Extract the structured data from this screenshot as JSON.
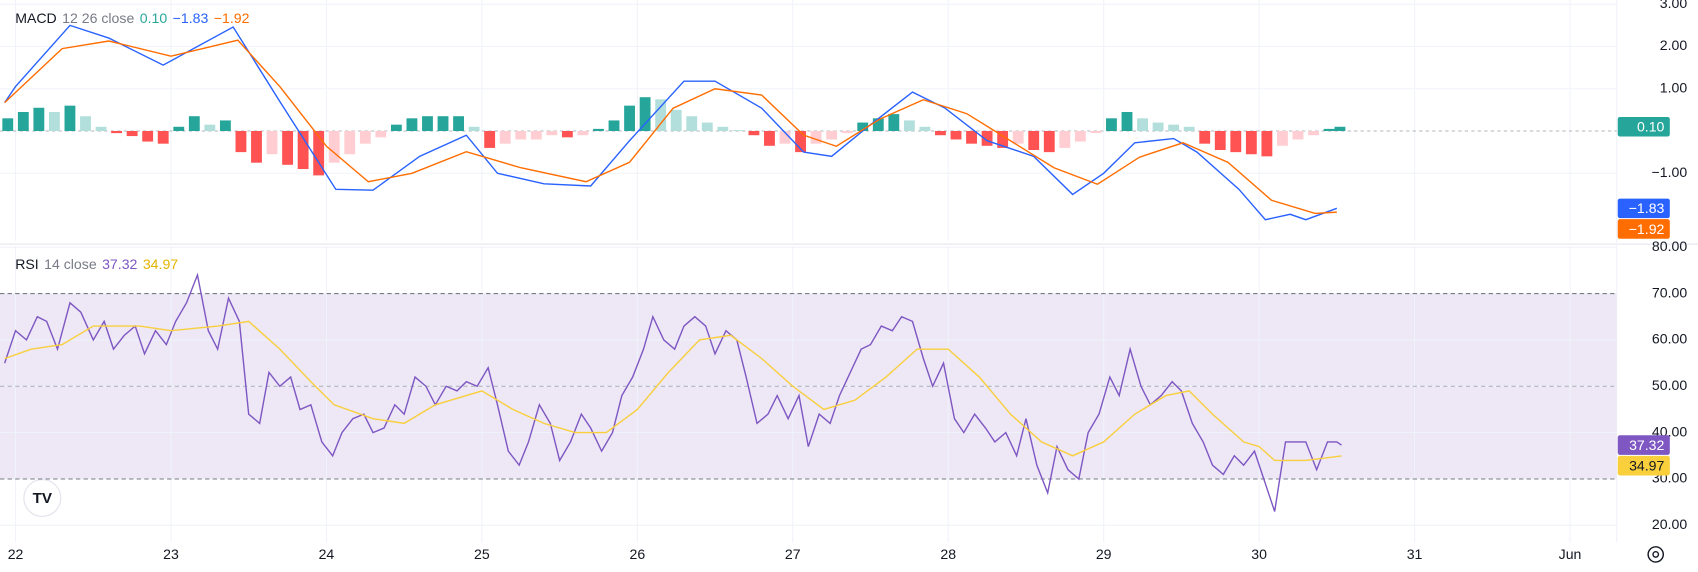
{
  "chart_data": [
    {
      "type": "macd",
      "title": "MACD",
      "params": "12 26 close",
      "xlim": [
        21.9,
        32.3
      ],
      "ylim": [
        -2.6,
        3.1
      ],
      "yticks": [
        {
          "value": 3,
          "label": "3.00"
        },
        {
          "value": 2,
          "label": "2.00"
        },
        {
          "value": 1,
          "label": "1.00"
        },
        {
          "value": -1,
          "label": "−1.00"
        }
      ],
      "zero_line": true,
      "grid": true,
      "series": [
        {
          "kind": "histogram",
          "color": "#26a69a",
          "last_label": "0.10",
          "colors": {
            "rise_above": "#26a69a",
            "fall_above": "#b2dfdb",
            "rise_below": "#ffcdd2",
            "fall_below": "#ff5252"
          },
          "x": [
            21.95,
            22.05,
            22.15,
            22.25,
            22.35,
            22.45,
            22.55,
            22.65,
            22.75,
            22.85,
            22.95,
            23.05,
            23.15,
            23.25,
            23.35,
            23.45,
            23.55,
            23.65,
            23.75,
            23.85,
            23.95,
            24.05,
            24.15,
            24.25,
            24.35,
            24.45,
            24.55,
            24.65,
            24.75,
            24.85,
            24.95,
            25.05,
            25.15,
            25.25,
            25.35,
            25.45,
            25.55,
            25.65,
            25.75,
            25.85,
            25.95,
            26.05,
            26.15,
            26.25,
            26.35,
            26.45,
            26.55,
            26.65,
            26.75,
            26.85,
            26.95,
            27.05,
            27.15,
            27.25,
            27.35,
            27.45,
            27.55,
            27.65,
            27.75,
            27.85,
            27.95,
            28.05,
            28.15,
            28.25,
            28.35,
            28.45,
            28.55,
            28.65,
            28.75,
            28.85,
            28.95,
            29.05,
            29.15,
            29.25,
            29.35,
            29.45,
            29.55,
            29.65,
            29.75,
            29.85,
            29.95,
            30.05,
            30.15,
            30.25,
            30.35,
            30.45,
            30.52
          ],
          "values": [
            0.3,
            0.45,
            0.55,
            0.45,
            0.6,
            0.35,
            0.1,
            -0.05,
            -0.12,
            -0.25,
            -0.3,
            0.1,
            0.35,
            0.15,
            0.25,
            -0.5,
            -0.75,
            -0.55,
            -0.8,
            -0.9,
            -1.05,
            -0.75,
            -0.55,
            -0.3,
            -0.15,
            0.15,
            0.3,
            0.35,
            0.35,
            0.35,
            0.1,
            -0.4,
            -0.3,
            -0.2,
            -0.2,
            -0.1,
            -0.15,
            -0.1,
            0.05,
            0.25,
            0.6,
            0.8,
            0.75,
            0.5,
            0.35,
            0.2,
            0.1,
            0.02,
            -0.1,
            -0.35,
            -0.3,
            -0.5,
            -0.3,
            -0.2,
            -0.05,
            0.2,
            0.3,
            0.4,
            0.25,
            0.1,
            -0.1,
            -0.2,
            -0.3,
            -0.35,
            -0.4,
            -0.3,
            -0.45,
            -0.5,
            -0.4,
            -0.25,
            -0.05,
            0.3,
            0.45,
            0.3,
            0.2,
            0.15,
            0.1,
            -0.3,
            -0.45,
            -0.5,
            -0.55,
            -0.6,
            -0.35,
            -0.2,
            -0.1,
            0.05,
            0.1
          ]
        },
        {
          "kind": "line",
          "color": "#2962ff",
          "last_label": "−1.83",
          "x": [
            21.93,
            22.0,
            22.35,
            22.6,
            22.95,
            23.4,
            23.7,
            24.06,
            24.3,
            24.6,
            24.9,
            25.1,
            25.4,
            25.7,
            25.95,
            26.3,
            26.5,
            26.8,
            27.07,
            27.25,
            27.5,
            27.77,
            27.98,
            28.25,
            28.55,
            28.8,
            29.0,
            29.2,
            29.45,
            29.6,
            29.87,
            30.04,
            30.2,
            30.3,
            30.5
          ],
          "values": [
            0.67,
            1.05,
            2.5,
            2.2,
            1.56,
            2.46,
            0.7,
            -1.38,
            -1.4,
            -0.6,
            -0.1,
            -1.0,
            -1.25,
            -1.3,
            -0.23,
            1.18,
            1.18,
            0.54,
            -0.5,
            -0.6,
            0.15,
            0.92,
            0.54,
            -0.23,
            -0.6,
            -1.5,
            -1.0,
            -0.28,
            -0.18,
            -0.5,
            -1.38,
            -2.1,
            -1.97,
            -2.1,
            -1.83
          ]
        },
        {
          "kind": "line",
          "color": "#ff6d00",
          "last_label": "−1.92",
          "x": [
            21.93,
            22.3,
            22.6,
            23.0,
            23.43,
            23.7,
            24.0,
            24.27,
            24.55,
            24.9,
            25.25,
            25.67,
            25.95,
            26.23,
            26.5,
            26.8,
            27.07,
            27.28,
            27.56,
            27.84,
            28.12,
            28.4,
            28.68,
            28.96,
            29.23,
            29.51,
            29.8,
            30.08,
            30.36,
            30.5
          ],
          "values": [
            0.67,
            1.95,
            2.13,
            1.77,
            2.15,
            1.05,
            -0.36,
            -1.2,
            -1.0,
            -0.49,
            -0.87,
            -1.2,
            -0.74,
            0.54,
            1.0,
            0.85,
            -0.1,
            -0.36,
            0.28,
            0.74,
            0.41,
            -0.23,
            -0.87,
            -1.26,
            -0.62,
            -0.28,
            -0.74,
            -1.64,
            -1.95,
            -1.92
          ]
        }
      ]
    },
    {
      "type": "rsi",
      "title": "RSI",
      "params": "14 close",
      "xlim": [
        21.9,
        32.3
      ],
      "ylim": [
        16.3,
        80.2
      ],
      "xticks": [
        22,
        23,
        24,
        25,
        26,
        27,
        28,
        29,
        30,
        31,
        {
          "value": 32,
          "label": "Jun"
        }
      ],
      "yticks": [
        {
          "value": 80,
          "label": "80.00"
        },
        {
          "value": 70,
          "label": "70.00"
        },
        {
          "value": 60,
          "label": "60.00"
        },
        {
          "value": 50,
          "label": "50.00"
        },
        {
          "value": 40,
          "label": "40.00"
        },
        {
          "value": 30,
          "label": "30.00"
        },
        {
          "value": 20,
          "label": "20.00"
        }
      ],
      "band": [
        30,
        70
      ],
      "band_color": "#ede7f6",
      "middle_line": 50,
      "grid": true,
      "series": [
        {
          "kind": "line",
          "color": "#7e57c2",
          "last_label": "37.32",
          "x": [
            21.93,
            22.0,
            22.07,
            22.14,
            22.2,
            22.27,
            22.35,
            22.42,
            22.5,
            22.57,
            22.63,
            22.7,
            22.77,
            22.83,
            22.9,
            22.97,
            23.03,
            23.1,
            23.17,
            23.24,
            23.3,
            23.37,
            23.44,
            23.5,
            23.57,
            23.63,
            23.7,
            23.77,
            23.83,
            23.9,
            23.97,
            24.04,
            24.1,
            24.17,
            24.24,
            24.3,
            24.37,
            24.44,
            24.5,
            24.57,
            24.64,
            24.7,
            24.77,
            24.84,
            24.9,
            24.97,
            25.04,
            25.1,
            25.17,
            25.24,
            25.3,
            25.37,
            25.44,
            25.5,
            25.57,
            25.64,
            25.7,
            25.77,
            25.84,
            25.9,
            25.97,
            26.04,
            26.1,
            26.17,
            26.24,
            26.3,
            26.37,
            26.44,
            26.5,
            26.57,
            26.64,
            26.7,
            26.77,
            26.84,
            26.9,
            26.97,
            27.04,
            27.1,
            27.17,
            27.24,
            27.3,
            27.37,
            27.44,
            27.5,
            27.57,
            27.64,
            27.7,
            27.77,
            27.84,
            27.9,
            27.97,
            28.04,
            28.1,
            28.17,
            28.24,
            28.3,
            28.37,
            28.44,
            28.5,
            28.57,
            28.64,
            28.7,
            28.77,
            28.84,
            28.9,
            28.97,
            29.04,
            29.1,
            29.17,
            29.24,
            29.3,
            29.37,
            29.44,
            29.5,
            29.57,
            29.64,
            29.7,
            29.77,
            29.84,
            29.9,
            29.97,
            30.04,
            30.1,
            30.17,
            30.24,
            30.3,
            30.37,
            30.44,
            30.5,
            30.53
          ],
          "values": [
            55,
            62,
            60,
            65,
            64,
            58,
            68,
            66,
            60,
            64,
            58,
            61,
            63,
            57,
            62,
            59,
            64,
            68,
            74,
            62,
            58,
            69,
            64,
            44,
            42,
            53,
            50,
            52,
            45,
            46,
            38,
            35,
            40,
            43,
            44,
            40,
            41,
            46,
            44,
            52,
            50,
            46,
            50,
            49,
            51,
            50,
            54,
            46,
            36,
            33,
            38,
            46,
            42,
            34,
            38,
            44,
            41,
            36,
            40,
            48,
            52,
            58,
            65,
            60,
            58,
            63,
            65,
            63,
            57,
            62,
            60,
            52,
            42,
            44,
            48,
            43,
            48,
            37,
            44,
            42,
            48,
            53,
            58,
            59,
            63,
            62,
            65,
            64,
            56,
            50,
            55,
            43,
            40,
            44,
            41,
            38,
            40,
            35,
            43,
            33,
            27,
            37,
            32,
            30,
            40,
            44,
            52,
            48,
            58,
            50,
            46,
            48,
            51,
            49,
            42,
            38,
            33,
            31,
            35,
            33,
            36,
            29,
            23,
            38,
            38,
            38,
            32,
            38,
            38,
            37.32
          ]
        },
        {
          "kind": "line",
          "color": "#f9cf3c",
          "last_label": "34.97",
          "x": [
            21.93,
            22.1,
            22.3,
            22.5,
            22.8,
            23.0,
            23.3,
            23.5,
            23.7,
            23.9,
            24.05,
            24.3,
            24.5,
            24.7,
            24.9,
            25.0,
            25.2,
            25.4,
            25.6,
            25.8,
            26.0,
            26.2,
            26.4,
            26.6,
            26.8,
            27.0,
            27.2,
            27.4,
            27.6,
            27.8,
            28.0,
            28.2,
            28.4,
            28.6,
            28.8,
            29.0,
            29.2,
            29.4,
            29.55,
            29.7,
            29.9,
            30.0,
            30.1,
            30.3,
            30.53
          ],
          "values": [
            56,
            58,
            59,
            63,
            63,
            62,
            63,
            64,
            58,
            51,
            46,
            43,
            42,
            46,
            48,
            49,
            45,
            42,
            40,
            40,
            45,
            53,
            60,
            61,
            56,
            50,
            45,
            47,
            52,
            58,
            58,
            52,
            44,
            38,
            35,
            38,
            44,
            48,
            49,
            44,
            38,
            37,
            34,
            34,
            34.97
          ]
        }
      ]
    }
  ]
}
